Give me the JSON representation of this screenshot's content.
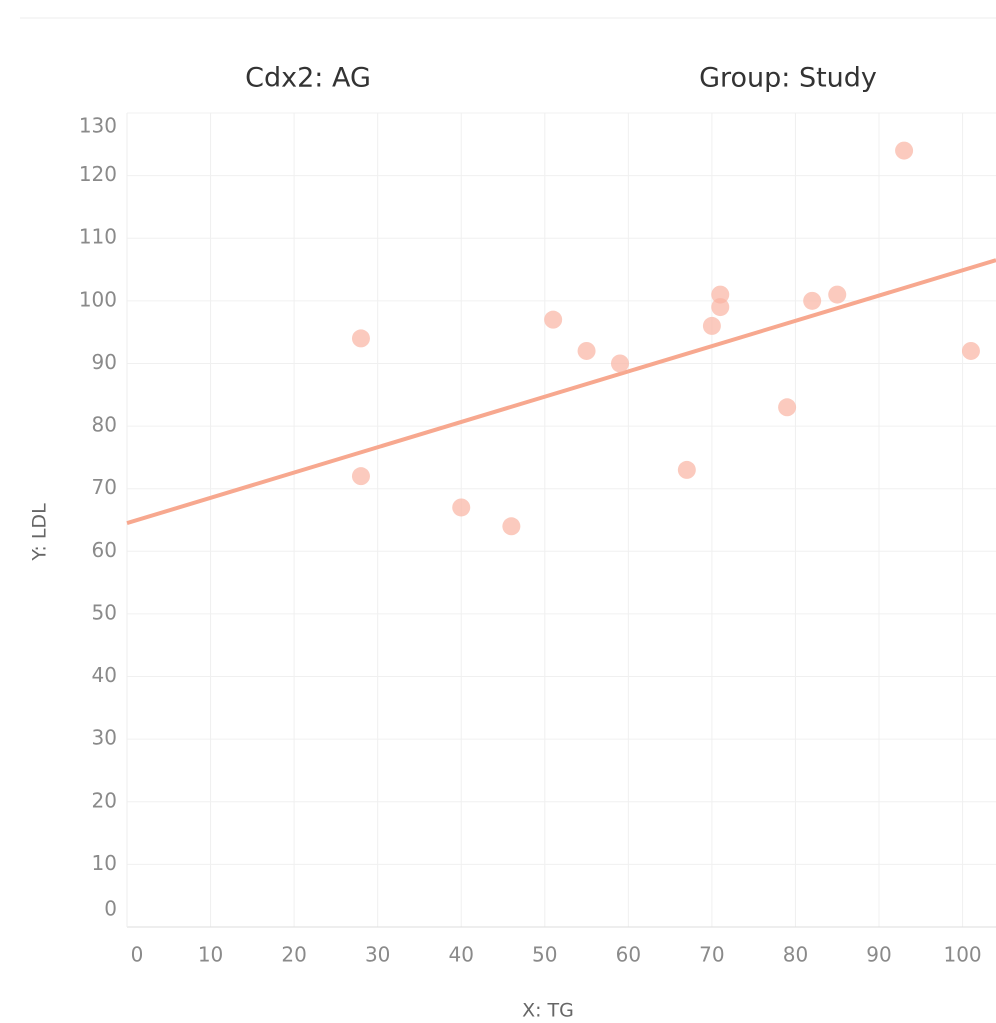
{
  "chart_data": {
    "type": "scatter",
    "titles": [
      "Cdx2: AG",
      "Group: Study"
    ],
    "xlabel": "X: TG",
    "ylabel": "Y: LDL",
    "x": [
      28,
      28,
      40,
      46,
      51,
      55,
      59,
      67,
      70,
      71,
      71,
      79,
      82,
      85,
      93,
      101
    ],
    "series": [
      {
        "color": "#f9b4a3",
        "values": [
          94,
          72,
          67,
          64,
          97,
          92,
          90,
          73,
          96,
          101,
          99,
          83,
          100,
          101,
          124,
          92
        ]
      }
    ],
    "trend_line": {
      "color": "#f7a88f",
      "x": [
        0,
        104
      ],
      "values": [
        64.5,
        106.5
      ]
    },
    "xlim": [
      0,
      104
    ],
    "ylim": [
      0,
      130
    ],
    "xticks": [
      0,
      10,
      20,
      30,
      40,
      50,
      60,
      70,
      80,
      90,
      100
    ],
    "yticks": [
      0,
      10,
      20,
      30,
      40,
      50,
      60,
      70,
      80,
      90,
      100,
      110,
      120,
      130
    ],
    "grid": true
  }
}
